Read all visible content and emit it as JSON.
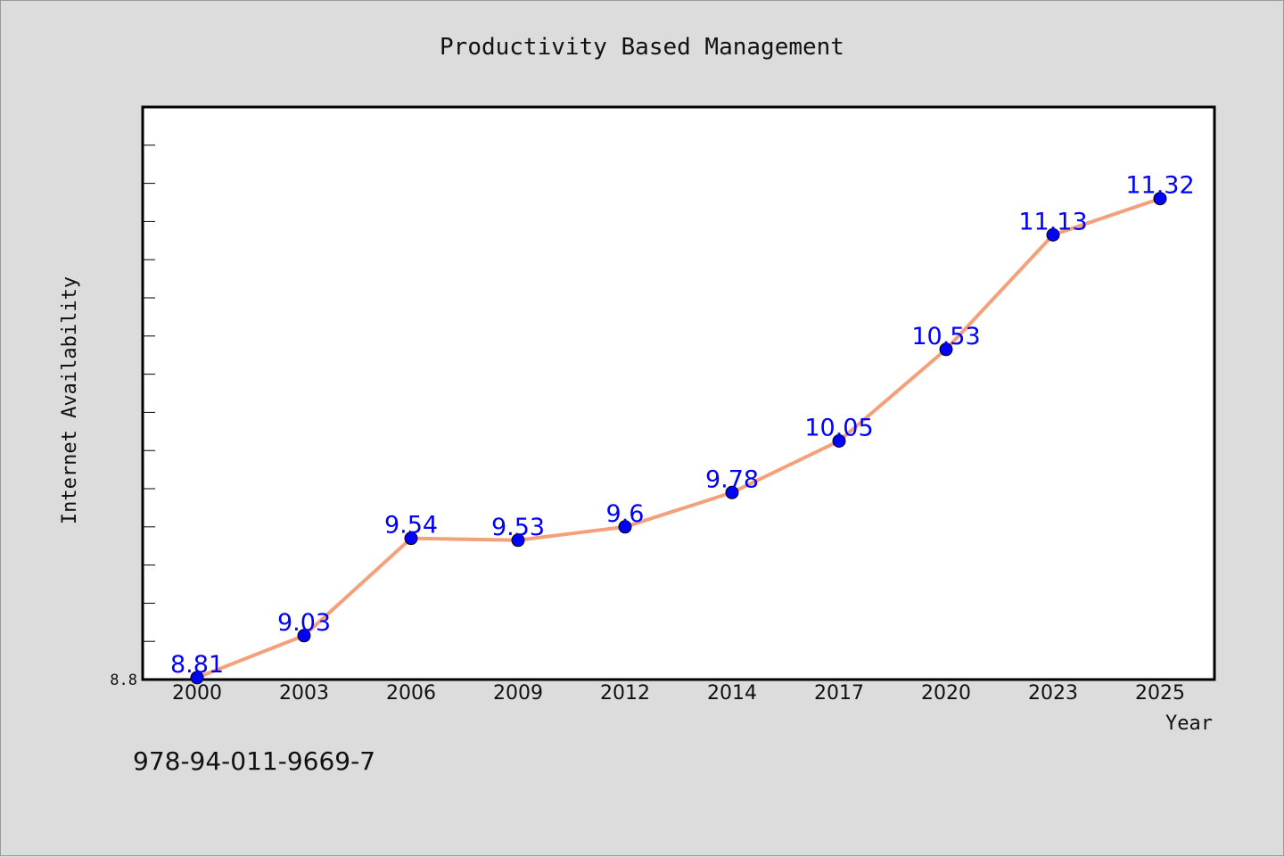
{
  "chart_data": {
    "type": "line",
    "title": "Productivity Based Management",
    "xlabel": "Year",
    "ylabel": "Internet Availability",
    "categories": [
      "2000",
      "2003",
      "2006",
      "2009",
      "2012",
      "2014",
      "2017",
      "2020",
      "2023",
      "2025"
    ],
    "series": [
      {
        "values": [
          8.81,
          9.03,
          9.54,
          9.53,
          9.6,
          9.78,
          10.05,
          10.53,
          11.13,
          11.32
        ],
        "labels": [
          "8.81",
          "9.03",
          "9.54",
          "9.53",
          "9.6",
          "9.78",
          "10.05",
          "10.53",
          "11.13",
          "11.32"
        ],
        "line_color": "#f4a07a",
        "marker_color": "#0000ff"
      }
    ],
    "ylim": [
      8.8,
      11.8
    ],
    "yticks": [
      8.8
    ],
    "ytick_labels": [
      "8.8"
    ],
    "grid": false,
    "legend": "none"
  },
  "footer": {
    "isbn": "978-94-011-9669-7"
  }
}
